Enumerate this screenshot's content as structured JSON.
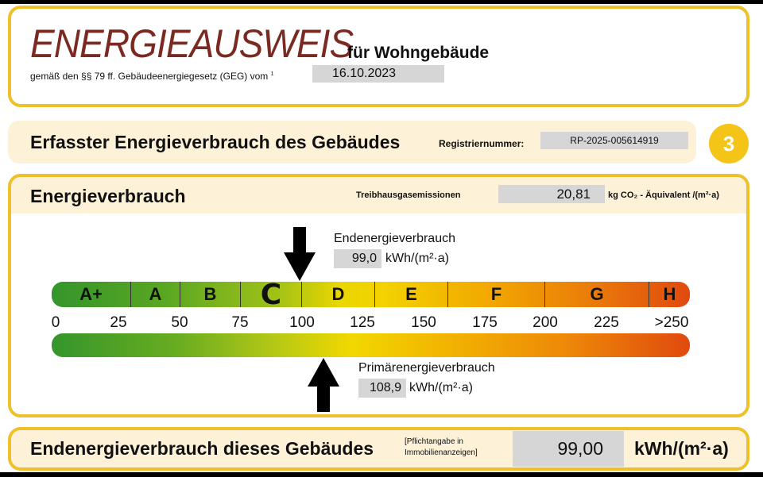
{
  "header": {
    "title": "ENERGIEAUSWEIS",
    "subtitle": "für Wohngebäude",
    "law_text": "gemäß den §§ 79 ff. Gebäudeenergiegesetz (GEG) vom",
    "footnote": "1",
    "date": "16.10.2023"
  },
  "section": {
    "title": "Erfasster Energieverbrauch des Gebäudes",
    "reg_label": "Registriernummer:",
    "reg_number": "RP-2025-005614919",
    "page_number": "3"
  },
  "consumption": {
    "title": "Energieverbrauch",
    "ghg_label": "Treibhausgasemissionen",
    "ghg_value": "20,81",
    "ghg_unit": "kg CO₂ - Äquivalent /(m²·a)",
    "end_label": "Endenergieverbrauch",
    "end_value": "99,0",
    "end_unit": "kWh/(m²·a)",
    "end_value_num": 99.0,
    "primary_label": "Primärenergieverbrauch",
    "primary_value": "108,9",
    "primary_unit": "kWh/(m²·a)",
    "primary_value_num": 108.9,
    "classes": [
      {
        "label": "A+",
        "from": 0,
        "to": 30
      },
      {
        "label": "A",
        "from": 30,
        "to": 50
      },
      {
        "label": "B",
        "from": 50,
        "to": 75
      },
      {
        "label": "C",
        "from": 75,
        "to": 100
      },
      {
        "label": "D",
        "from": 100,
        "to": 130
      },
      {
        "label": "E",
        "from": 130,
        "to": 160
      },
      {
        "label": "F",
        "from": 160,
        "to": 200
      },
      {
        "label": "G",
        "from": 200,
        "to": 250
      },
      {
        "label": "H",
        "from": 250,
        "to": 270
      }
    ],
    "highlighted_class": "C",
    "ticks": [
      "0",
      "25",
      "50",
      "75",
      "100",
      "125",
      "150",
      "175",
      "200",
      "225",
      ">250"
    ],
    "colors": {
      "green": "#35952b",
      "yellow": "#f3d200",
      "red": "#e04a0e",
      "border": "#eec12a"
    }
  },
  "footer": {
    "label": "Endenergieverbrauch dieses Gebäudes",
    "note_line1": "[Pflichtangabe in",
    "note_line2": "Immobilienanzeigen]",
    "value": "99,00",
    "unit": "kWh/(m²·a)"
  }
}
